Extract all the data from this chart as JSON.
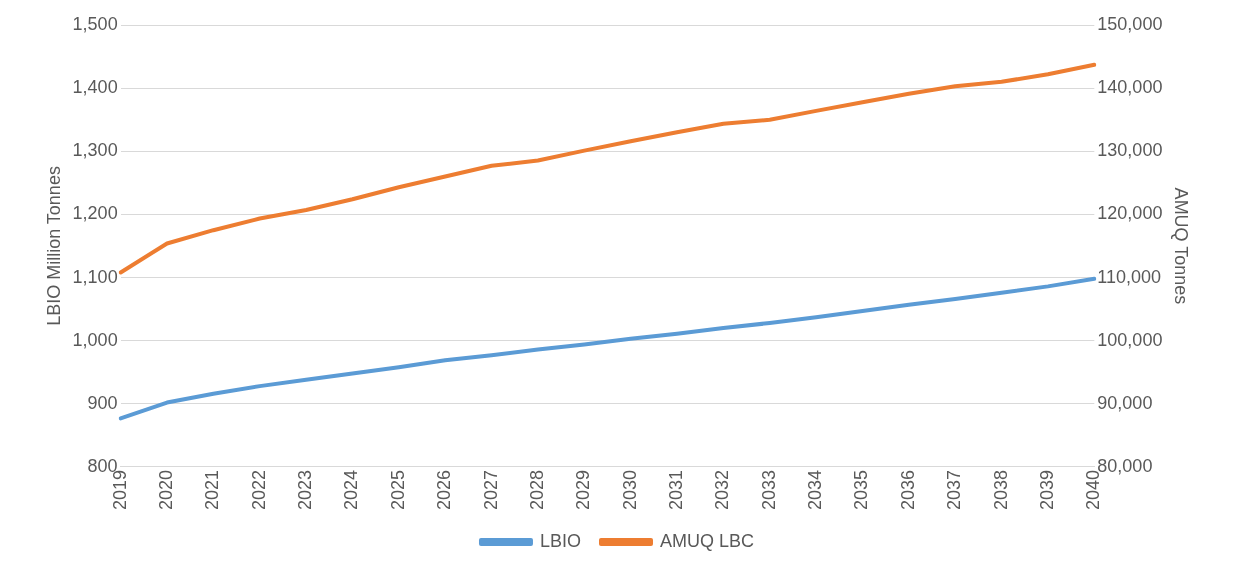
{
  "chart_data": {
    "type": "line",
    "ylabel": "LBIO Million Tonnes",
    "y2label": "AMUQ Tonnes",
    "categories": [
      "2019",
      "2020",
      "2021",
      "2022",
      "2023",
      "2024",
      "2025",
      "2026",
      "2027",
      "2028",
      "2029",
      "2030",
      "2031",
      "2032",
      "2033",
      "2034",
      "2035",
      "2036",
      "2037",
      "2038",
      "2039",
      "2040"
    ],
    "series": [
      {
        "name": "LBIO",
        "color": "#5b9bd5",
        "values": [
          877,
          902,
          916,
          928,
          938,
          948,
          958,
          969,
          977,
          986,
          994,
          1003,
          1011,
          1020,
          1028,
          1037,
          1047,
          1057,
          1066,
          1076,
          1086,
          1098
        ]
      },
      {
        "name": "AMUQ LBC",
        "color": "#ed7d31",
        "axis": "y2",
        "values": [
          110800,
          115400,
          117500,
          119350,
          120700,
          122400,
          124300,
          126000,
          127700,
          128550,
          130100,
          131600,
          133000,
          134350,
          135000,
          136400,
          137750,
          139100,
          140300,
          141000,
          142200,
          143700
        ]
      }
    ],
    "ylim": [
      800,
      1500
    ],
    "yticks": [
      {
        "value": 800,
        "label": "800"
      },
      {
        "value": 900,
        "label": "900"
      },
      {
        "value": 1000,
        "label": "1,000"
      },
      {
        "value": 1100,
        "label": "1,100"
      },
      {
        "value": 1200,
        "label": "1,200"
      },
      {
        "value": 1300,
        "label": "1,300"
      },
      {
        "value": 1400,
        "label": "1,400"
      },
      {
        "value": 1500,
        "label": "1,500"
      }
    ],
    "y2lim": [
      80000,
      150000
    ],
    "y2ticks": [
      {
        "value": 80000,
        "label": "80,000"
      },
      {
        "value": 90000,
        "label": "90,000"
      },
      {
        "value": 100000,
        "label": "100,000"
      },
      {
        "value": 110000,
        "label": "110,000"
      },
      {
        "value": 120000,
        "label": "120,000"
      },
      {
        "value": 130000,
        "label": "130,000"
      },
      {
        "value": 140000,
        "label": "140,000"
      },
      {
        "value": 150000,
        "label": "150,000"
      }
    ],
    "grid": "y",
    "legend": "bottom",
    "marker": "none",
    "line_style": "solid"
  }
}
